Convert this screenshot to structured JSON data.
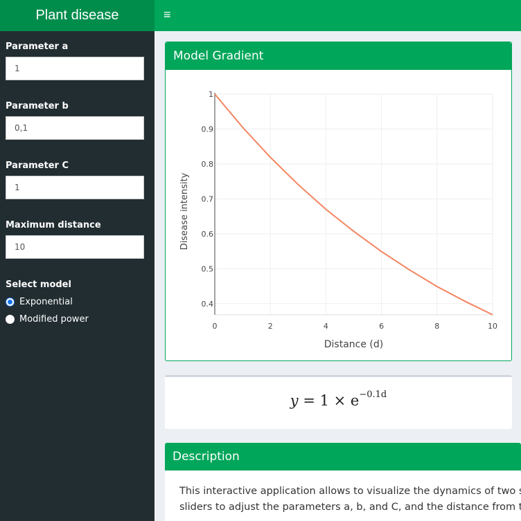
{
  "header": {
    "title": "Plant disease",
    "menu_icon": "hamburger-icon"
  },
  "sidebar": {
    "param_a": {
      "label": "Parameter a",
      "value": "1"
    },
    "param_b": {
      "label": "Parameter b",
      "value": "0,1"
    },
    "param_c": {
      "label": "Parameter C",
      "value": "1"
    },
    "max_distance": {
      "label": "Maximum distance",
      "value": "10"
    },
    "model": {
      "label": "Select model",
      "options": [
        "Exponential",
        "Modified power"
      ],
      "selected": "Exponential"
    }
  },
  "plot_box": {
    "title": "Model Gradient"
  },
  "equation": {
    "lhs": "y",
    "middle": " = 1 × e",
    "exponent": "−0.1d"
  },
  "description": {
    "title": "Description",
    "lines": [
      "This interactive application allows to visualize the dynamics of two spatial",
      "sliders to adjust the parameters a, b, and C, and the distance from the dise"
    ]
  },
  "colors": {
    "accent": "#00a65a",
    "sidebar": "#222d32",
    "curve": "#f4845f"
  },
  "chart_data": {
    "type": "line",
    "title": "",
    "xlabel": "Distance (d)",
    "ylabel": "Disease intensity",
    "xlim": [
      0,
      10
    ],
    "ylim": [
      0.3679,
      1
    ],
    "x_ticks": [
      0,
      2,
      4,
      6,
      8,
      10
    ],
    "y_ticks": [
      0.4,
      0.5,
      0.6,
      0.7,
      0.8,
      0.9,
      1
    ],
    "grid": true,
    "series": [
      {
        "x": [
          0,
          1,
          2,
          3,
          4,
          5,
          6,
          7,
          8,
          9,
          10
        ],
        "y": [
          1,
          0.905,
          0.819,
          0.741,
          0.67,
          0.607,
          0.549,
          0.497,
          0.449,
          0.407,
          0.368
        ]
      }
    ]
  }
}
